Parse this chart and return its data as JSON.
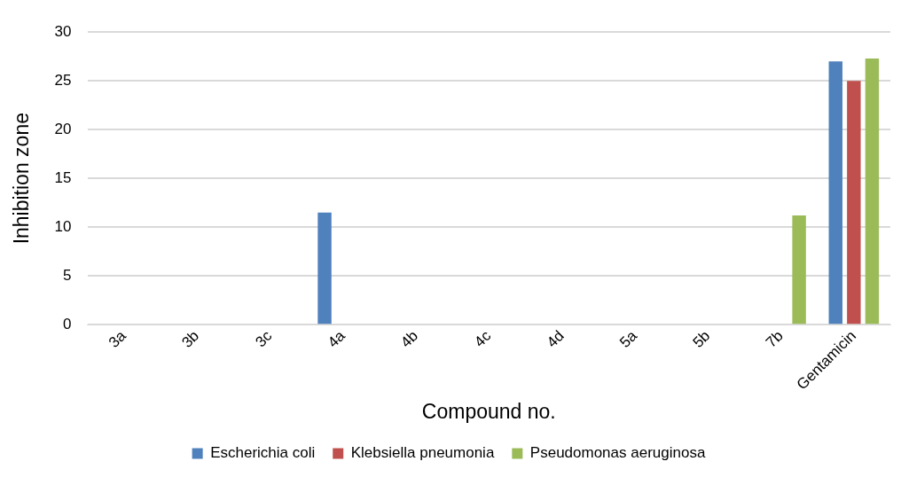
{
  "chart_data": {
    "type": "bar",
    "xlabel": "Compound no.",
    "ylabel": "Inhibition zone",
    "categories": [
      "3a",
      "3b",
      "3c",
      "4a",
      "4b",
      "4c",
      "4d",
      "5a",
      "5b",
      "7b",
      "Gentamicin"
    ],
    "series": [
      {
        "name": "Escherichia coli",
        "color": "#4f81bd",
        "values": [
          0,
          0,
          0,
          11.5,
          0,
          0,
          0,
          0,
          0,
          0,
          27
        ]
      },
      {
        "name": "Klebsiella pneumonia",
        "color": "#c0504d",
        "values": [
          0,
          0,
          0,
          0,
          0,
          0,
          0,
          0,
          0,
          0,
          25
        ]
      },
      {
        "name": "Pseudomonas aeruginosa",
        "color": "#9bbb59",
        "values": [
          0,
          0,
          0,
          0,
          0,
          0,
          0,
          0,
          0,
          11.2,
          27.3
        ]
      }
    ],
    "ylim": [
      0,
      30
    ],
    "yticks": [
      0,
      5,
      10,
      15,
      20,
      25,
      30
    ],
    "grid": "y",
    "legend": "bottom"
  }
}
